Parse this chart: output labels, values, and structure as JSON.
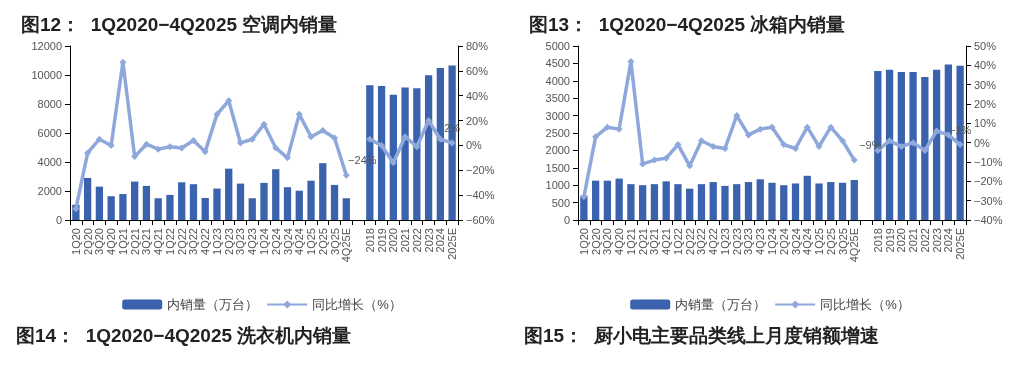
{
  "chart_data": [
    {
      "type": "bar",
      "title": "图12：  1Q2020−4Q2025 空调内销量",
      "annotations": [
        "图14：  1Q2020−4Q2025 洗衣机内销量"
      ],
      "categories": [
        "1Q20",
        "2Q20",
        "3Q20",
        "4Q20",
        "1Q21",
        "2Q21",
        "3Q21",
        "4Q21",
        "1Q22",
        "2Q22",
        "3Q22",
        "4Q22",
        "1Q23",
        "2Q23",
        "3Q23",
        "4Q23",
        "1Q24",
        "2Q24",
        "3Q24",
        "4Q24",
        "1Q25",
        "2Q25",
        "3Q25",
        "4Q25E",
        null,
        "2018",
        "2019",
        "2020",
        "2021",
        "2022",
        "2023",
        "2024",
        "2025E"
      ],
      "series": [
        {
          "name": "内销量（万台）",
          "color": "#3a62ad",
          "values": [
            1050,
            2900,
            2300,
            1640,
            1790,
            2650,
            2350,
            1500,
            1730,
            2600,
            2470,
            1520,
            2170,
            3540,
            2510,
            1500,
            2560,
            3500,
            2260,
            2020,
            2710,
            3920,
            2420,
            1500,
            null,
            9300,
            9240,
            8640,
            9130,
            9080,
            9980,
            10480,
            10650
          ]
        },
        {
          "name": "同比增长（%）",
          "type": "line",
          "axis": "y2",
          "color": "#8fa8dc",
          "values": [
            -51,
            -6,
            5,
            0,
            67,
            -9,
            1,
            -3,
            -1,
            -2,
            4,
            -5,
            25,
            36,
            2,
            5,
            17,
            -2,
            -10,
            25,
            7,
            12,
            6,
            -24,
            null,
            5,
            0,
            -14,
            7,
            -1,
            20,
            5,
            2
          ],
          "value_labels": [
            null,
            null,
            null,
            null,
            null,
            null,
            null,
            null,
            null,
            null,
            null,
            null,
            null,
            null,
            null,
            null,
            null,
            null,
            null,
            null,
            null,
            null,
            null,
            "−24%",
            null,
            null,
            null,
            null,
            null,
            null,
            null,
            null,
            "2%"
          ]
        }
      ],
      "ylim": [
        0,
        12000
      ],
      "yticks": [
        0,
        2000,
        4000,
        6000,
        8000,
        10000,
        12000
      ],
      "y2lim": [
        -60,
        80
      ],
      "y2ticks": [
        {
          "value": -60,
          "label": "−60%"
        },
        {
          "value": -40,
          "label": "−40%"
        },
        {
          "value": -20,
          "label": "−20%"
        },
        {
          "value": 0,
          "label": "0%"
        },
        {
          "value": 20,
          "label": "20%"
        },
        {
          "value": 40,
          "label": "40%"
        },
        {
          "value": 60,
          "label": "60%"
        },
        {
          "value": 80,
          "label": "80%"
        }
      ],
      "legend": "bottom",
      "grid": false,
      "marker": "diamond"
    },
    {
      "type": "bar",
      "title": "图13：  1Q2020−4Q2025 冰箱内销量",
      "annotations": [
        "图15：  厨小电主要品类线上月度销额增速"
      ],
      "categories": [
        "1Q20",
        "2Q20",
        "3Q20",
        "4Q20",
        "1Q21",
        "2Q21",
        "3Q21",
        "4Q21",
        "1Q22",
        "2Q22",
        "3Q22",
        "4Q22",
        "1Q23",
        "2Q23",
        "3Q23",
        "4Q23",
        "1Q24",
        "2Q24",
        "3Q24",
        "4Q24",
        "1Q25",
        "2Q25",
        "3Q25",
        "4Q25E",
        null,
        "2018",
        "2019",
        "2020",
        "2021",
        "2022",
        "2023",
        "2024",
        "2025E"
      ],
      "series": [
        {
          "name": "内销量（万台）",
          "color": "#3a62ad",
          "values": [
            700,
            1130,
            1130,
            1190,
            1030,
            1000,
            1030,
            1110,
            1030,
            900,
            1030,
            1090,
            980,
            1030,
            1090,
            1170,
            1070,
            1000,
            1050,
            1270,
            1050,
            1090,
            1070,
            1150,
            null,
            4280,
            4320,
            4250,
            4250,
            4110,
            4320,
            4470,
            4430
          ]
        },
        {
          "name": "同比增长（%）",
          "type": "line",
          "axis": "y2",
          "color": "#8fa8dc",
          "values": [
            -28,
            3,
            8,
            7,
            42,
            -11,
            -9,
            -8,
            -1,
            -12,
            1,
            -2,
            -3,
            14,
            4,
            7,
            8,
            -1,
            -3,
            8,
            -2,
            8,
            1,
            -9,
            null,
            -4,
            1,
            -2,
            0,
            -4,
            6,
            4,
            -1
          ],
          "value_labels": [
            null,
            null,
            null,
            null,
            null,
            null,
            null,
            null,
            null,
            null,
            null,
            null,
            null,
            null,
            null,
            null,
            null,
            null,
            null,
            null,
            null,
            null,
            null,
            "−9%",
            null,
            null,
            null,
            null,
            null,
            null,
            null,
            null,
            "−1%"
          ]
        }
      ],
      "ylim": [
        0,
        5000
      ],
      "yticks": [
        0,
        500,
        1000,
        1500,
        2000,
        2500,
        3000,
        3500,
        4000,
        4500,
        5000
      ],
      "y2lim": [
        -40,
        50
      ],
      "y2ticks": [
        {
          "value": -40,
          "label": "−40%"
        },
        {
          "value": -30,
          "label": "−30%"
        },
        {
          "value": -20,
          "label": "−20%"
        },
        {
          "value": -10,
          "label": "−10%"
        },
        {
          "value": 0,
          "label": "0%"
        },
        {
          "value": 10,
          "label": "10%"
        },
        {
          "value": 20,
          "label": "20%"
        },
        {
          "value": 30,
          "label": "30%"
        },
        {
          "value": 40,
          "label": "40%"
        },
        {
          "value": 50,
          "label": "50%"
        }
      ],
      "legend": "bottom",
      "grid": false,
      "marker": "diamond"
    }
  ]
}
